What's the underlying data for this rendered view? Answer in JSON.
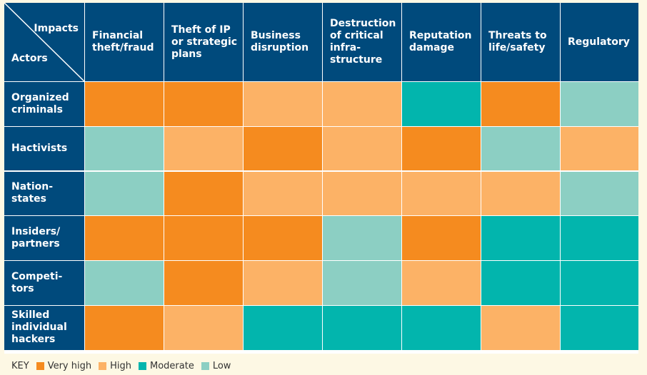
{
  "chart_data": {
    "type": "heatmap",
    "corner": {
      "column_label": "Impacts",
      "row_label": "Actors"
    },
    "columns": [
      "Financial\ntheft/fraud",
      "Theft of IP\nor strategic\nplans",
      "Business\ndisruption",
      "Destruction\nof critical\ninfra-\nstructure",
      "Reputation\ndamage",
      "Threats to\nlife/safety",
      "Regulatory"
    ],
    "rows": [
      {
        "label": "Organized\ncriminals",
        "values": [
          "Very high",
          "Very high",
          "High",
          "High",
          "Moderate",
          "Very high",
          "Low"
        ]
      },
      {
        "label": "Hactivists",
        "values": [
          "Low",
          "High",
          "Very high",
          "High",
          "Very high",
          "Low",
          "High"
        ]
      },
      {
        "label": "Nation-\nstates",
        "values": [
          "Low",
          "Very high",
          "High",
          "High",
          "High",
          "High",
          "Low"
        ]
      },
      {
        "label": "Insiders/\npartners",
        "values": [
          "Very high",
          "Very high",
          "Very high",
          "Low",
          "Very high",
          "Moderate",
          "Moderate"
        ]
      },
      {
        "label": "Competi-\ntors",
        "values": [
          "Low",
          "Very high",
          "High",
          "Low",
          "High",
          "Moderate",
          "Moderate"
        ]
      },
      {
        "label": "Skilled\nindividual\nhackers",
        "values": [
          "Very high",
          "High",
          "Moderate",
          "Moderate",
          "Moderate",
          "High",
          "Moderate"
        ]
      }
    ],
    "key": {
      "title": "KEY",
      "levels": [
        {
          "name": "Very high",
          "color": "#f58b1f"
        },
        {
          "name": "High",
          "color": "#fcb266"
        },
        {
          "name": "Moderate",
          "color": "#02b5ad"
        },
        {
          "name": "Low",
          "color": "#8ccfc3"
        }
      ]
    }
  },
  "colors": {
    "header_bg": "#004a7c",
    "header_text": "#ffffff",
    "page_bg": "#fdf8e4"
  }
}
